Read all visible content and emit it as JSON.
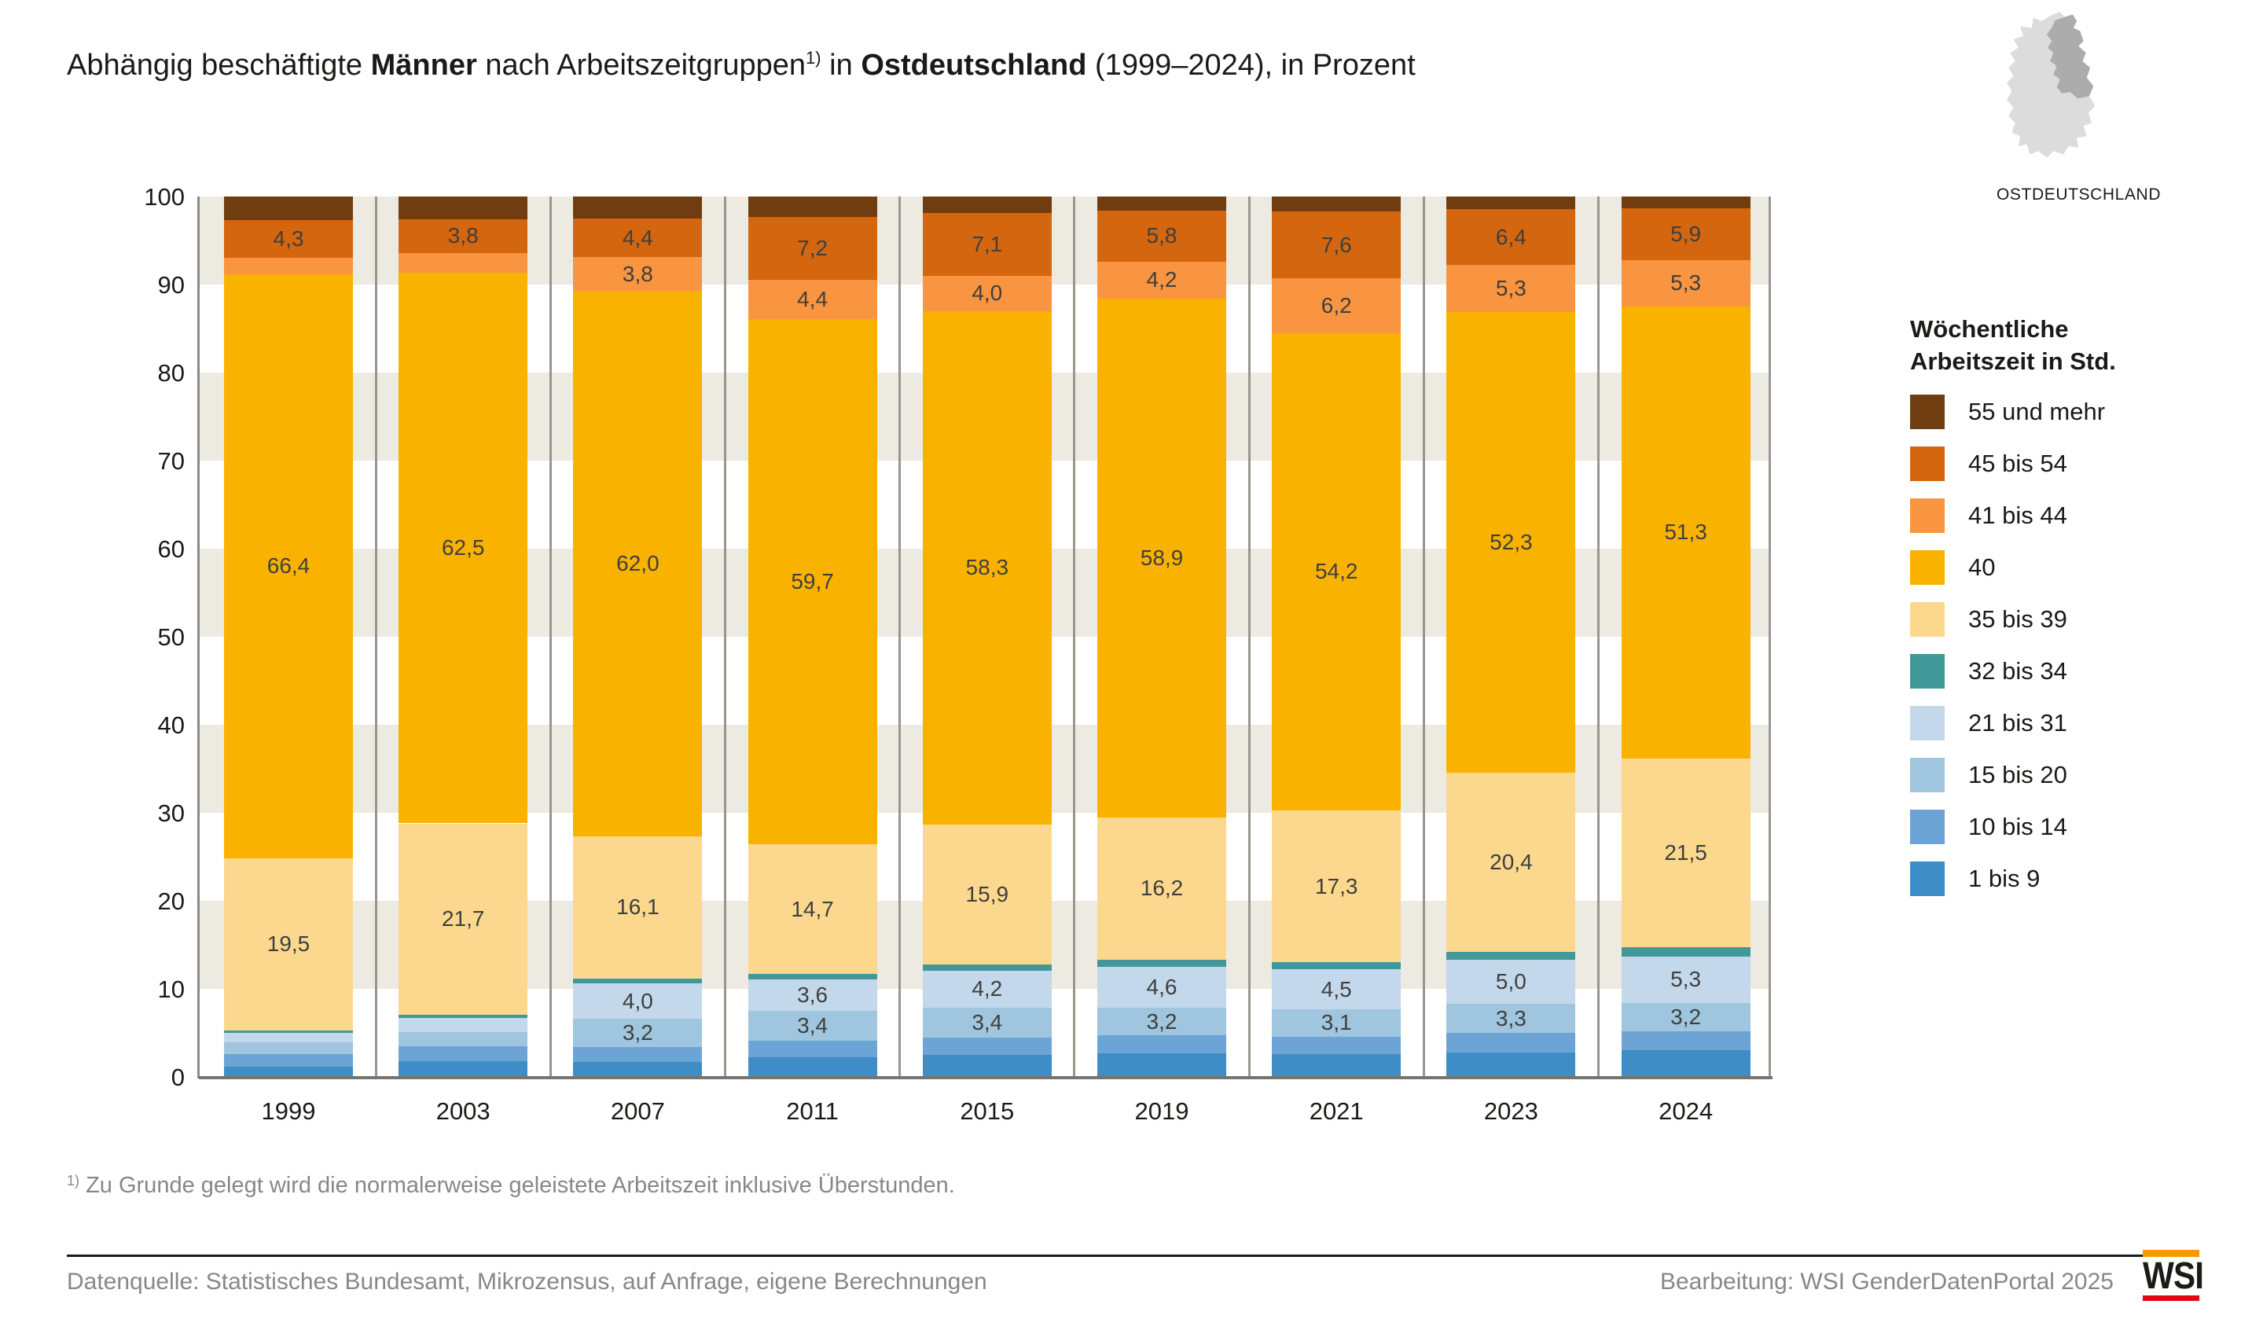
{
  "title": {
    "runs": [
      {
        "text": "Abhängig beschäftigte "
      },
      {
        "text": "Männer",
        "bold": true
      },
      {
        "text": " nach Arbeitszeitgruppen"
      },
      {
        "text": "1)",
        "sup": true
      },
      {
        "text": " in "
      },
      {
        "text": "Ostdeutschland",
        "bold": true
      },
      {
        "text": " (1999–2024), in Prozent"
      }
    ]
  },
  "map": {
    "label": "OSTDEUTSCHLAND",
    "west_color": "#dcdcdc",
    "east_color": "#acacac"
  },
  "legend": {
    "title_line1": "Wöchentliche",
    "title_line2": "Arbeitszeit in Std.",
    "items": [
      {
        "label": "55 und mehr",
        "color": "#6f3d0f"
      },
      {
        "label": "45 bis 54",
        "color": "#d4660f"
      },
      {
        "label": "41 bis 44",
        "color": "#f99540"
      },
      {
        "label": "40",
        "color": "#f9b200"
      },
      {
        "label": "35 bis 39",
        "color": "#fbd88d"
      },
      {
        "label": "32 bis 34",
        "color": "#429899"
      },
      {
        "label": "21 bis 31",
        "color": "#c3d8ea"
      },
      {
        "label": "15 bis 20",
        "color": "#9fc6de"
      },
      {
        "label": "10 bis 14",
        "color": "#6ca4d6"
      },
      {
        "label": "1 bis 9",
        "color": "#3e8dc6"
      }
    ]
  },
  "chart_data": {
    "type": "bar",
    "stacked": true,
    "title": "Abhängig beschäftigte Männer nach Arbeitszeitgruppen in Ostdeutschland (1999–2024), in Prozent",
    "unit": "Prozent",
    "ylim": [
      0,
      100
    ],
    "yticks": [
      0,
      10,
      20,
      30,
      40,
      50,
      60,
      70,
      80,
      90,
      100
    ],
    "grid": "horizontal beige bands every 10 units",
    "legend_position": "right",
    "categories": [
      "1999",
      "2003",
      "2007",
      "2011",
      "2015",
      "2019",
      "2021",
      "2023",
      "2024"
    ],
    "series": [
      {
        "name": "55 und mehr",
        "color": "#6f3d0f",
        "values": [
          2.7,
          2.6,
          2.5,
          2.3,
          1.9,
          1.6,
          1.7,
          1.4,
          1.3
        ],
        "labels": [
          "",
          "",
          "",
          "",
          "",
          "",
          "",
          "",
          ""
        ]
      },
      {
        "name": "45 bis 54",
        "color": "#d4660f",
        "values": [
          4.3,
          3.8,
          4.4,
          7.2,
          7.1,
          5.8,
          7.6,
          6.4,
          5.9
        ],
        "labels": [
          "4,3",
          "3,8",
          "4,4",
          "7,2",
          "7,1",
          "5,8",
          "7,6",
          "6,4",
          "5,9"
        ]
      },
      {
        "name": "41 bis 44",
        "color": "#f99540",
        "values": [
          1.8,
          2.3,
          3.8,
          4.4,
          4.0,
          4.2,
          6.2,
          5.3,
          5.3
        ],
        "labels": [
          "",
          "",
          "3,8",
          "4,4",
          "4,0",
          "4,2",
          "6,2",
          "5,3",
          "5,3"
        ]
      },
      {
        "name": "40",
        "color": "#f9b200",
        "values": [
          66.4,
          62.5,
          62.0,
          59.7,
          58.3,
          58.9,
          54.2,
          52.3,
          51.3
        ],
        "labels": [
          "66,4",
          "62,5",
          "62,0",
          "59,7",
          "58,3",
          "58,9",
          "54,2",
          "52,3",
          "51,3"
        ]
      },
      {
        "name": "35 bis 39",
        "color": "#fbd88d",
        "values": [
          19.5,
          21.7,
          16.1,
          14.7,
          15.9,
          16.2,
          17.3,
          20.4,
          21.5
        ],
        "labels": [
          "19,5",
          "21,7",
          "16,1",
          "14,7",
          "15,9",
          "16,2",
          "17,3",
          "20,4",
          "21,5"
        ]
      },
      {
        "name": "32 bis 34",
        "color": "#429899",
        "values": [
          0.3,
          0.4,
          0.6,
          0.6,
          0.7,
          0.8,
          0.8,
          0.9,
          1.0
        ],
        "labels": [
          "",
          "",
          "",
          "",
          "",
          "",
          "",
          "",
          ""
        ]
      },
      {
        "name": "21 bis 31",
        "color": "#c3d8ea",
        "values": [
          1.1,
          1.6,
          4.0,
          3.6,
          4.2,
          4.6,
          4.5,
          5.0,
          5.3
        ],
        "labels": [
          "",
          "",
          "4,0",
          "3,6",
          "4,2",
          "4,6",
          "4,5",
          "5,0",
          "5,3"
        ]
      },
      {
        "name": "15 bis 20",
        "color": "#9fc6de",
        "values": [
          1.3,
          1.6,
          3.2,
          3.4,
          3.4,
          3.2,
          3.1,
          3.3,
          3.2
        ],
        "labels": [
          "",
          "",
          "3,2",
          "3,4",
          "3,4",
          "3,2",
          "3,1",
          "3,3",
          "3,2"
        ]
      },
      {
        "name": "10 bis 14",
        "color": "#6ca4d6",
        "values": [
          1.4,
          1.7,
          1.7,
          1.9,
          2.0,
          2.0,
          2.0,
          2.2,
          2.2
        ],
        "labels": [
          "",
          "",
          "",
          "",
          "",
          "",
          "",
          "",
          ""
        ]
      },
      {
        "name": "1 bis 9",
        "color": "#3e8dc6",
        "values": [
          1.2,
          1.8,
          1.7,
          2.2,
          2.5,
          2.7,
          2.6,
          2.8,
          3.0
        ],
        "labels": [
          "",
          "",
          "",
          "",
          "",
          "",
          "",
          "",
          ""
        ]
      }
    ]
  },
  "footnote": {
    "sup": "1)",
    "text": " Zu Grunde gelegt wird die normalerweise geleistete Arbeitszeit inklusive Überstunden."
  },
  "footer": {
    "source": "Datenquelle: Statistisches Bundesamt, Mikrozensus, auf Anfrage, eigene Berechnungen",
    "editing": "Bearbeitung: WSI GenderDatenPortal 2025",
    "logo_text": "WSI"
  },
  "colors": {
    "band_beige": "#edeae1",
    "grid_line": "#97978f",
    "axis_gray": "#8a8a82",
    "bar_label": "#3f3f3e",
    "footer_gray": "#878787",
    "logo_orange": "#f59b00",
    "logo_red": "#e30613"
  }
}
